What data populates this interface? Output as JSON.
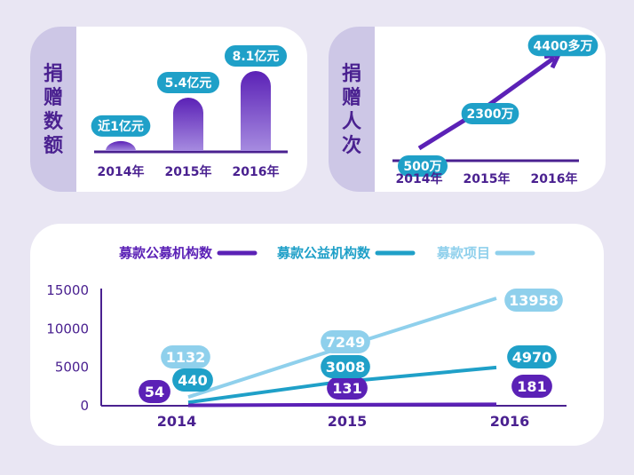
{
  "colors": {
    "background": "#e9e6f3",
    "card": "#ffffff",
    "side_tab": "#cdc7e6",
    "purple_dark": "#4a2190",
    "purple": "#5b21b6",
    "purple_light": "#a68be0",
    "teal": "#1fa0c8",
    "light_blue": "#8fd0ec"
  },
  "donation_amount": {
    "title_chars": [
      "捐",
      "赠",
      "数",
      "额"
    ]
  },
  "donation_count": {
    "title_chars": [
      "捐",
      "赠",
      "人",
      "次"
    ]
  },
  "chart_data": [
    {
      "type": "bar",
      "categories": [
        "2014年",
        "2015年",
        "2016年"
      ],
      "values": [
        1,
        5.4,
        8.1
      ],
      "labels": [
        "近1亿元",
        "5.4亿元",
        "8.1亿元"
      ],
      "title": "",
      "xlabel": "",
      "ylabel": ""
    },
    {
      "type": "line",
      "categories": [
        "2014年",
        "2015年",
        "2016年"
      ],
      "values": [
        500,
        2300,
        4400
      ],
      "labels": [
        "500万",
        "2300万",
        "4400多万"
      ],
      "title": "",
      "xlabel": "",
      "ylabel": ""
    },
    {
      "type": "line",
      "categories": [
        "2014",
        "2015",
        "2016"
      ],
      "series": [
        {
          "name": "募款公募机构数",
          "values": [
            54,
            131,
            181
          ],
          "color": "#5b21b6"
        },
        {
          "name": "募款公益机构数",
          "values": [
            440,
            3008,
            4970
          ],
          "color": "#1fa0c8"
        },
        {
          "name": "募款项目",
          "values": [
            1132,
            7249,
            13958
          ],
          "color": "#8fd0ec"
        }
      ],
      "yticks": [
        "0",
        "5000",
        "10000",
        "15000"
      ],
      "ylim": [
        0,
        15000
      ],
      "grid": false,
      "legend": "top",
      "title": "",
      "xlabel": "",
      "ylabel": ""
    }
  ]
}
